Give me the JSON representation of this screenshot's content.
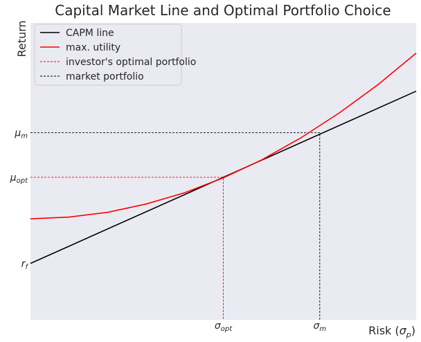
{
  "chart_data": {
    "type": "line",
    "title": "Capital Market Line and Optimal Portfolio Choice",
    "xlabel": "Risk (σ_p)",
    "ylabel": "Return",
    "xlim": [
      0,
      1
    ],
    "ylim": [
      0,
      1
    ],
    "grid": false,
    "legend_position": "top-left",
    "x_ticks": [
      {
        "value": 0.5,
        "label": "σ",
        "sub": "opt"
      },
      {
        "value": 0.75,
        "label": "σ",
        "sub": "m"
      }
    ],
    "y_ticks": [
      {
        "value": 0.19,
        "label": "r",
        "sub": "f"
      },
      {
        "value": 0.48,
        "label": "μ",
        "sub": "opt"
      },
      {
        "value": 0.63,
        "label": "μ",
        "sub": "m"
      }
    ],
    "series": [
      {
        "name": "CAPM line",
        "style": "solid",
        "color": "#000000",
        "x": [
          0,
          1
        ],
        "y": [
          0.19,
          0.77
        ]
      },
      {
        "name": "max. utility",
        "style": "solid",
        "color": "#ff0000",
        "x": [
          0,
          0.1,
          0.2,
          0.3,
          0.4,
          0.5,
          0.6,
          0.7,
          0.8,
          0.9,
          1.0
        ],
        "y": [
          0.34,
          0.346,
          0.362,
          0.39,
          0.428,
          0.478,
          0.539,
          0.612,
          0.696,
          0.791,
          0.898
        ]
      },
      {
        "name": "investor's optimal portfolio",
        "style": "dashed",
        "color": "#ff0000",
        "x": [
          0,
          0.5,
          0.5
        ],
        "y": [
          0.48,
          0.48,
          0
        ]
      },
      {
        "name": "market portfolio",
        "style": "dashed",
        "color": "#000000",
        "x": [
          0,
          0.75,
          0.75
        ],
        "y": [
          0.63,
          0.63,
          0
        ]
      }
    ],
    "colors": {
      "plot_bg": "#eaeaf2",
      "text": "#262626"
    }
  }
}
